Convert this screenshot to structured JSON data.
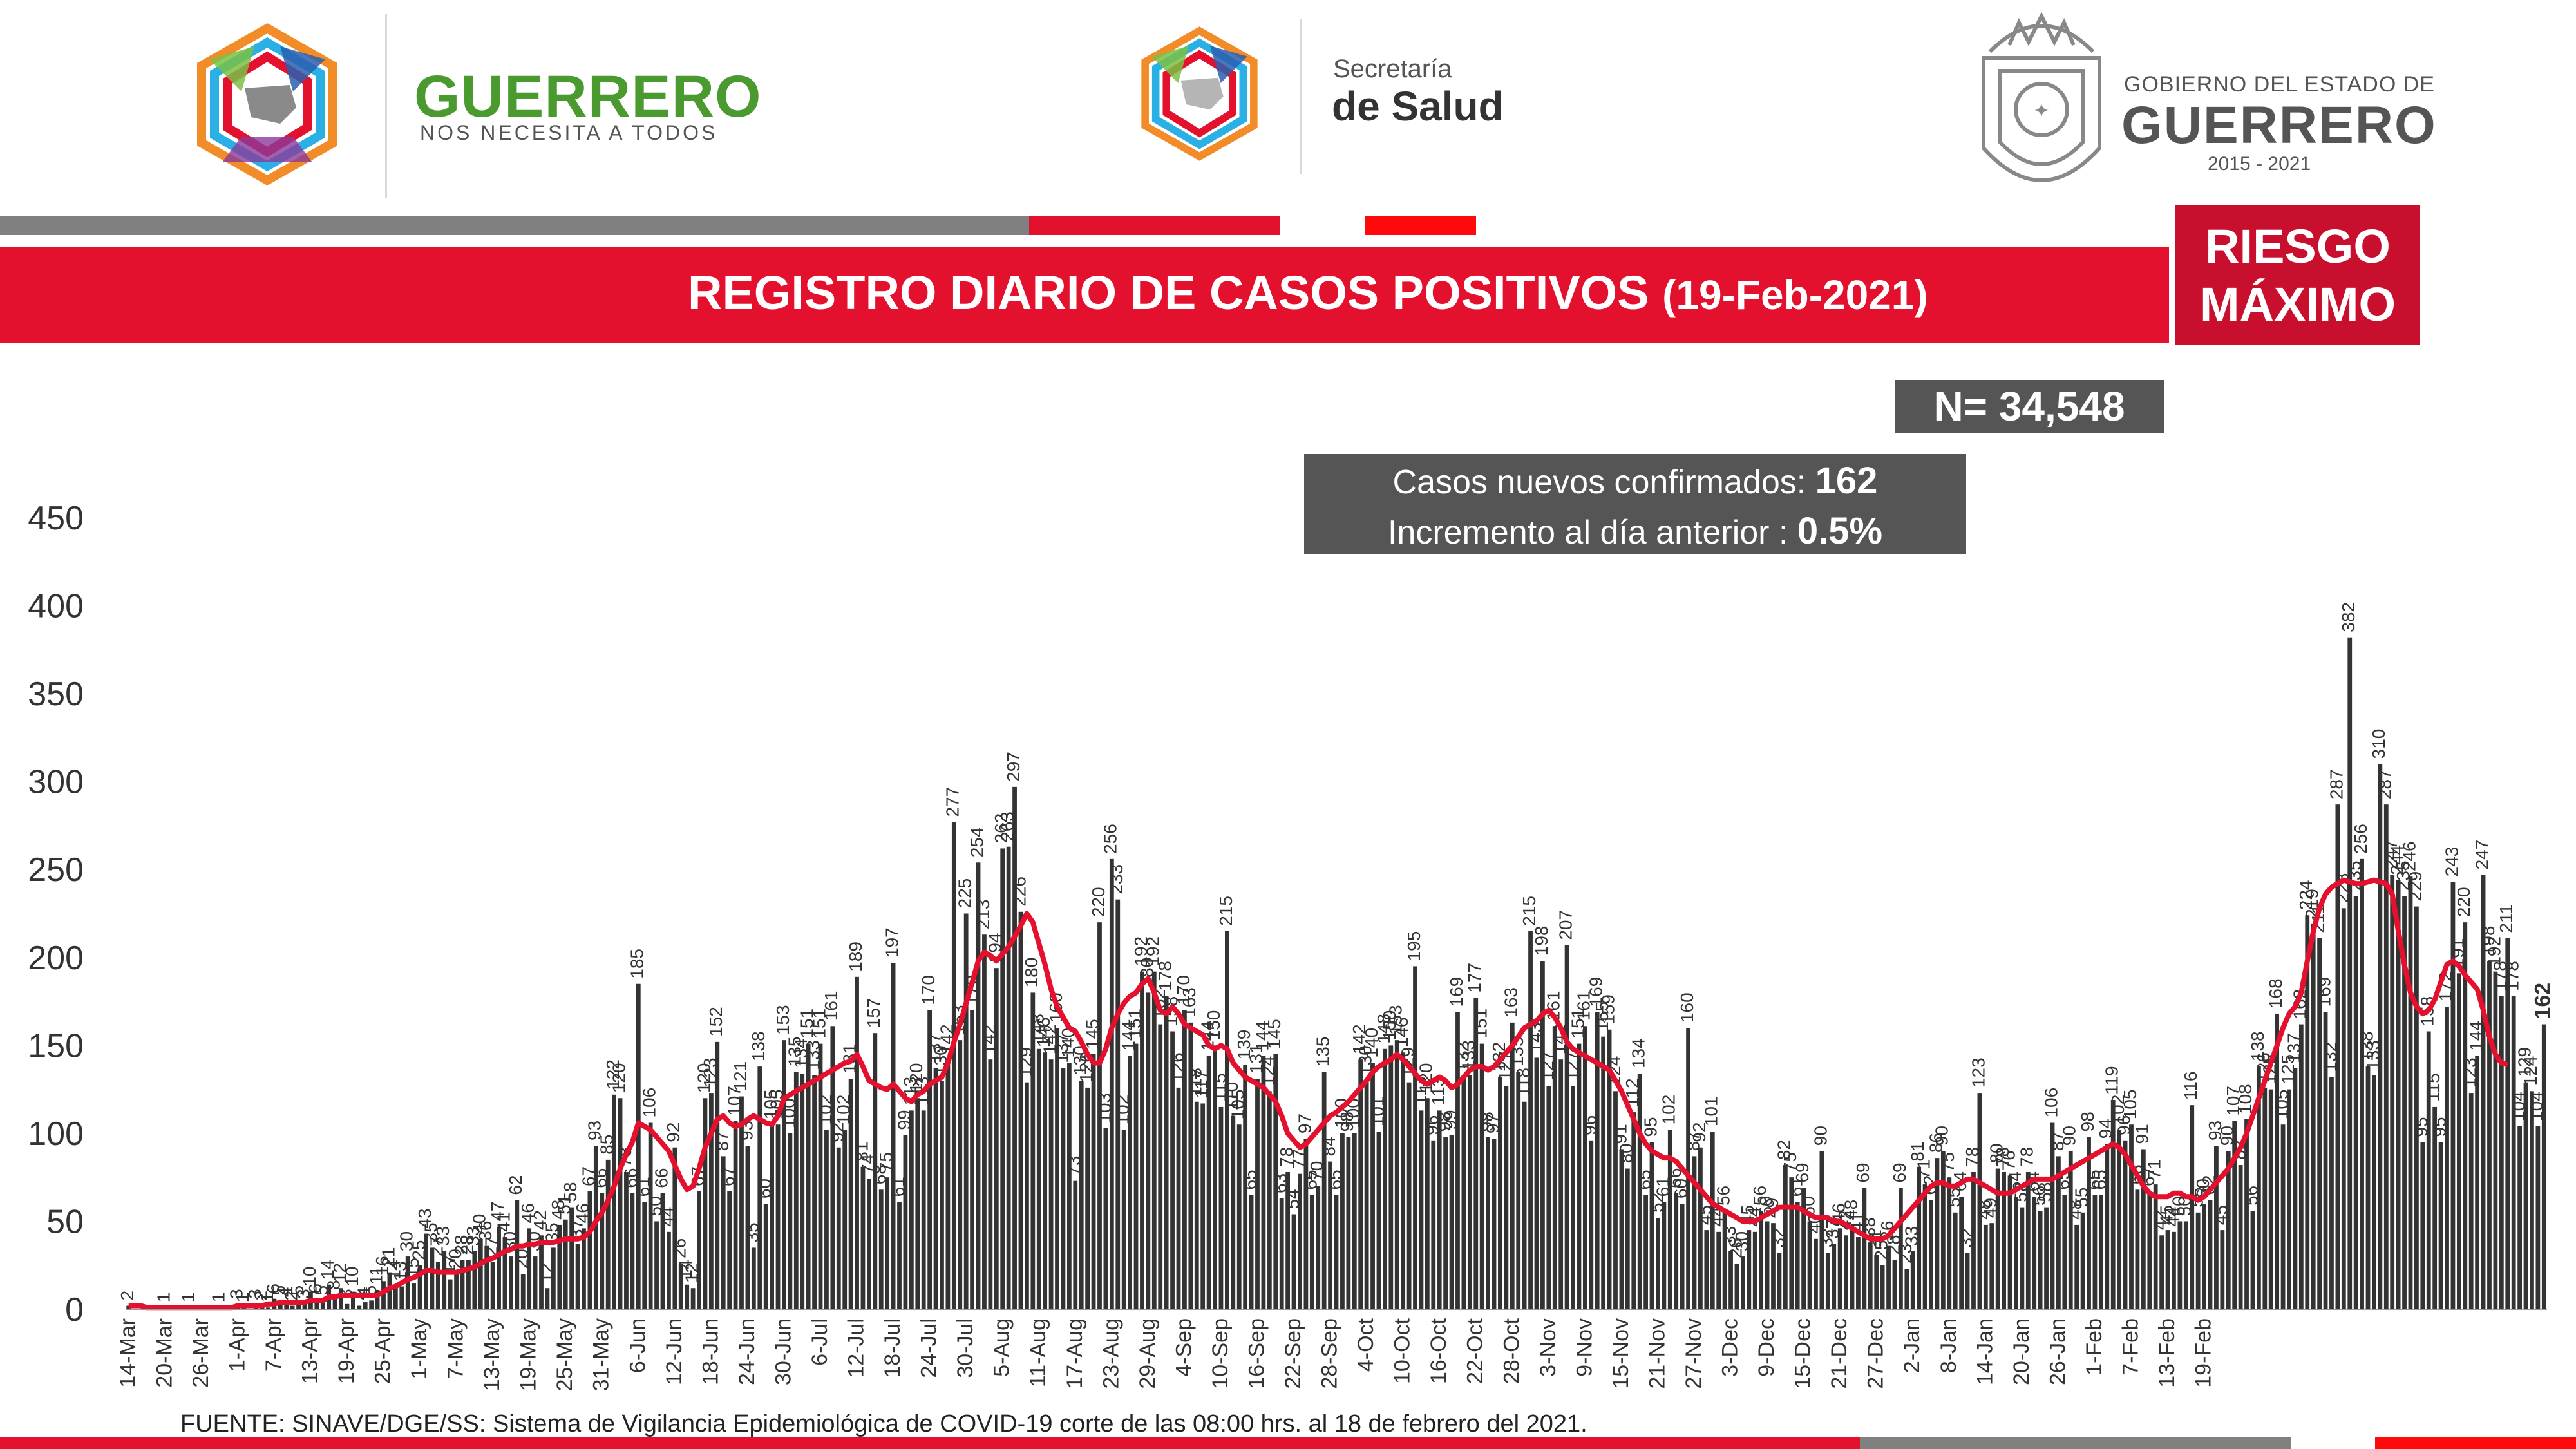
{
  "header": {
    "logo1_text": "GUERRERO",
    "logo1_tagline": "NOS NECESITA A TODOS",
    "logo2_line1": "Secretaría",
    "logo2_line2": "de Salud",
    "gov_line1": "GOBIERNO DEL ESTADO DE",
    "gov_line2": "GUERRERO",
    "gov_years": "2015 - 2021"
  },
  "title": {
    "main": "REGISTRO DIARIO DE CASOS POSITIVOS",
    "date": "(19-Feb-2021)"
  },
  "risk": {
    "line1": "RIESGO",
    "line2": "MÁXIMO"
  },
  "stats": {
    "n_total": "N= 34,548",
    "new_cases_label": "Casos nuevos confirmados:",
    "new_cases_value": "162",
    "increment_label": "Incremento al día anterior :",
    "increment_value": "0.5%"
  },
  "footer": {
    "source": "FUENTE: SINAVE/DGE/SS: Sistema de Vigilancia Epidemiológica de COVID-19 corte de las 08:00 hrs. al 18 de febrero del 2021."
  },
  "colors": {
    "bar": "#333333",
    "line": "#e3102e",
    "title_bar": "#e3102e",
    "risk_box": "#c8102e",
    "stat_box": "#555555"
  },
  "chart_data": {
    "type": "bar",
    "title": "REGISTRO DIARIO DE CASOS POSITIVOS",
    "ylim": [
      0,
      450
    ],
    "yticks": [
      0,
      50,
      100,
      150,
      200,
      250,
      300,
      350,
      400,
      450
    ],
    "xtick_labels": [
      "14-Mar",
      "20-Mar",
      "26-Mar",
      "1-Apr",
      "7-Apr",
      "13-Apr",
      "19-Apr",
      "25-Apr",
      "1-May",
      "7-May",
      "13-May",
      "19-May",
      "25-May",
      "31-May",
      "6-Jun",
      "12-Jun",
      "18-Jun",
      "24-Jun",
      "30-Jun",
      "6-Jul",
      "12-Jul",
      "18-Jul",
      "24-Jul",
      "30-Jul",
      "5-Aug",
      "11-Aug",
      "17-Aug",
      "23-Aug",
      "29-Aug",
      "4-Sep",
      "10-Sep",
      "16-Sep",
      "22-Sep",
      "28-Sep",
      "4-Oct",
      "10-Oct",
      "16-Oct",
      "22-Oct",
      "28-Oct",
      "3-Nov",
      "9-Nov",
      "15-Nov",
      "21-Nov",
      "27-Nov",
      "3-Dec",
      "9-Dec",
      "15-Dec",
      "21-Dec",
      "27-Dec",
      "2-Jan",
      "8-Jan",
      "14-Jan",
      "20-Jan",
      "26-Jan",
      "1-Feb",
      "7-Feb",
      "13-Feb",
      "19-Feb"
    ],
    "series": [
      {
        "type": "bar",
        "x_start": "14-Mar",
        "values": [
          2,
          0,
          0,
          0,
          0,
          0,
          1,
          0,
          0,
          0,
          1,
          0,
          0,
          0,
          0,
          1,
          0,
          0,
          3,
          1,
          0,
          3,
          2,
          1,
          6,
          5,
          4,
          2,
          5,
          3,
          10,
          6,
          5,
          14,
          8,
          12,
          3,
          10,
          2,
          4,
          5,
          11,
          16,
          21,
          14,
          13,
          30,
          15,
          25,
          43,
          35,
          27,
          33,
          17,
          20,
          28,
          28,
          33,
          40,
          36,
          27,
          47,
          41,
          30,
          62,
          20,
          46,
          30,
          42,
          12,
          35,
          48,
          51,
          58,
          37,
          46,
          67,
          93,
          66,
          85,
          122,
          120,
          78,
          66,
          185,
          61,
          106,
          50,
          66,
          44,
          92,
          26,
          14,
          12,
          67,
          120,
          123,
          152,
          87,
          67,
          107,
          121,
          93,
          35,
          138,
          60,
          105,
          105,
          153,
          100,
          135,
          134,
          151,
          133,
          151,
          102,
          161,
          92,
          102,
          131,
          189,
          81,
          74,
          157,
          68,
          75,
          197,
          61,
          99,
          113,
          120,
          113,
          170,
          137,
          130,
          142,
          277,
          153,
          225,
          170,
          254,
          213,
          142,
          194,
          262,
          263,
          297,
          226,
          129,
          180,
          148,
          146,
          142,
          160,
          137,
          140,
          73,
          130,
          126,
          145,
          220,
          103,
          256,
          233,
          102,
          144,
          151,
          192,
          180,
          192,
          162,
          178,
          158,
          126,
          170,
          163,
          118,
          117,
          144,
          150,
          115,
          215,
          110,
          105,
          139,
          65,
          131,
          144,
          124,
          145,
          63,
          78,
          54,
          77,
          97,
          65,
          70,
          135,
          84,
          65,
          100,
          98,
          100,
          142,
          130,
          140,
          101,
          148,
          150,
          153,
          146,
          129,
          195,
          113,
          120,
          96,
          113,
          98,
          99,
          169,
          132,
          133,
          177,
          151,
          98,
          97,
          132,
          127,
          163,
          135,
          118,
          215,
          143,
          198,
          127,
          161,
          142,
          207,
          127,
          151,
          161,
          96,
          169,
          155,
          159,
          124,
          91,
          80,
          112,
          134,
          65,
          95,
          52,
          61,
          102,
          66,
          60,
          160,
          87,
          92,
          45,
          101,
          44,
          56,
          33,
          26,
          30,
          45,
          44,
          56,
          50,
          49,
          32,
          82,
          75,
          61,
          69,
          50,
          40,
          90,
          32,
          37,
          46,
          42,
          48,
          41,
          69,
          38,
          31,
          25,
          36,
          28,
          69,
          23,
          33,
          81,
          71,
          62,
          86,
          90,
          75,
          55,
          64,
          32,
          78,
          123,
          48,
          49,
          80,
          78,
          76,
          64,
          58,
          78,
          64,
          56,
          58,
          106,
          87,
          65,
          90,
          48,
          55,
          98,
          65,
          65,
          94,
          119,
          102,
          96,
          105,
          68,
          91,
          67,
          71,
          42,
          45,
          44,
          50,
          50,
          116,
          55,
          60,
          62,
          93,
          45,
          90,
          107,
          82,
          108,
          56,
          138,
          126,
          125,
          168,
          105,
          125,
          137,
          162,
          224,
          219,
          211,
          169,
          132,
          287,
          228,
          382,
          235,
          256,
          138,
          133,
          310,
          287,
          247,
          244,
          235,
          246,
          229,
          95,
          158,
          115,
          95,
          172,
          243,
          191,
          220,
          123,
          144,
          247,
          198,
          192,
          178,
          211,
          178,
          104,
          129,
          124,
          104,
          162
        ]
      },
      {
        "type": "line",
        "name": "",
        "values": [
          2,
          2,
          2,
          1,
          1,
          1,
          1,
          1,
          1,
          1,
          1,
          1,
          1,
          1,
          1,
          1,
          1,
          1,
          2,
          2,
          2,
          2,
          2,
          3,
          3,
          4,
          4,
          4,
          4,
          4,
          5,
          5,
          5,
          7,
          7,
          8,
          8,
          8,
          8,
          8,
          8,
          8,
          10,
          12,
          13,
          15,
          17,
          18,
          20,
          22,
          22,
          21,
          21,
          21,
          21,
          22,
          23,
          24,
          26,
          28,
          29,
          31,
          33,
          34,
          36,
          36,
          37,
          37,
          38,
          38,
          38,
          39,
          40,
          40,
          40,
          41,
          44,
          50,
          55,
          62,
          70,
          80,
          88,
          95,
          106,
          104,
          102,
          98,
          94,
          90,
          82,
          74,
          68,
          70,
          80,
          92,
          100,
          108,
          110,
          106,
          104,
          105,
          108,
          110,
          108,
          106,
          105,
          110,
          120,
          122,
          124,
          126,
          128,
          130,
          132,
          134,
          136,
          138,
          140,
          141,
          145,
          138,
          130,
          128,
          126,
          125,
          128,
          124,
          120,
          118,
          122,
          124,
          128,
          130,
          132,
          140,
          152,
          162,
          174,
          186,
          198,
          203,
          201,
          198,
          202,
          206,
          212,
          218,
          225,
          220,
          208,
          196,
          182,
          172,
          166,
          160,
          158,
          152,
          145,
          140,
          140,
          148,
          160,
          168,
          174,
          178,
          180,
          185,
          188,
          180,
          170,
          168,
          172,
          168,
          162,
          160,
          158,
          156,
          150,
          148,
          150,
          148,
          140,
          136,
          132,
          130,
          128,
          126,
          122,
          118,
          110,
          100,
          96,
          92,
          94,
          98,
          102,
          106,
          110,
          112,
          115,
          118,
          122,
          126,
          130,
          135,
          138,
          140,
          142,
          145,
          142,
          138,
          134,
          130,
          128,
          130,
          132,
          130,
          126,
          128,
          132,
          136,
          138,
          138,
          136,
          138,
          142,
          146,
          150,
          155,
          160,
          162,
          164,
          168,
          170,
          166,
          160,
          152,
          148,
          146,
          144,
          142,
          140,
          138,
          136,
          130,
          124,
          116,
          108,
          100,
          94,
          90,
          88,
          86,
          86,
          84,
          80,
          76,
          72,
          68,
          64,
          60,
          58,
          56,
          54,
          52,
          50,
          50,
          50,
          52,
          54,
          56,
          58,
          58,
          58,
          58,
          56,
          54,
          52,
          52,
          52,
          50,
          50,
          48,
          46,
          44,
          42,
          40,
          40,
          40,
          42,
          46,
          50,
          54,
          58,
          62,
          66,
          70,
          72,
          72,
          70,
          70,
          72,
          74,
          74,
          72,
          70,
          68,
          66,
          66,
          66,
          68,
          70,
          72,
          74,
          74,
          74,
          74,
          76,
          78,
          80,
          82,
          84,
          86,
          88,
          90,
          92,
          94,
          92,
          88,
          82,
          76,
          70,
          66,
          64,
          64,
          64,
          66,
          66,
          64,
          64,
          62,
          64,
          68,
          72,
          76,
          80,
          86,
          92,
          100,
          110,
          120,
          130,
          140,
          150,
          160,
          168,
          172,
          180,
          198,
          215,
          228,
          236,
          240,
          242,
          244,
          243,
          242,
          242,
          243,
          244,
          243,
          242,
          236,
          215,
          196,
          180,
          172,
          168,
          170,
          176,
          186,
          196,
          198,
          195,
          190,
          186,
          182,
          170,
          155,
          145,
          140,
          139
        ]
      }
    ]
  }
}
